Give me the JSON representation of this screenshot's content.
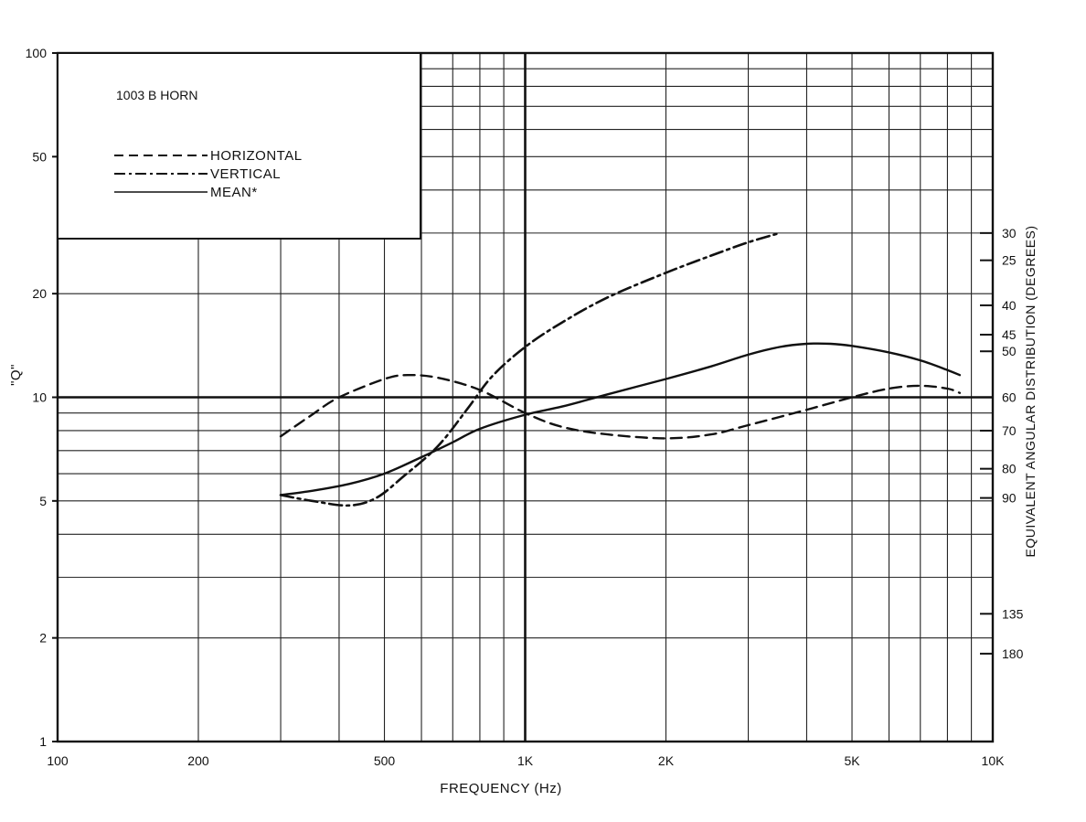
{
  "chart_data": {
    "type": "line",
    "title": "1003 B HORN",
    "xlabel": "FREQUENCY (Hz)",
    "ylabel": "\"Q\"",
    "y2label": "EQUIVALENT ANGULAR DISTRIBUTION (DEGREES)",
    "xscale": "log",
    "yscale": "log",
    "xlim": [
      100,
      10000
    ],
    "ylim": [
      1,
      100
    ],
    "grid": true,
    "legend_position": "top-left",
    "x_ticks": [
      {
        "value": 100,
        "label": "100"
      },
      {
        "value": 200,
        "label": "200"
      },
      {
        "value": 500,
        "label": "500"
      },
      {
        "value": 1000,
        "label": "1K"
      },
      {
        "value": 2000,
        "label": "2K"
      },
      {
        "value": 5000,
        "label": "5K"
      },
      {
        "value": 10000,
        "label": "10K"
      }
    ],
    "y_ticks": [
      {
        "value": 1,
        "label": "1"
      },
      {
        "value": 2,
        "label": "2"
      },
      {
        "value": 5,
        "label": "5"
      },
      {
        "value": 10,
        "label": "10"
      },
      {
        "value": 20,
        "label": "20"
      },
      {
        "value": 50,
        "label": "50"
      },
      {
        "value": 100,
        "label": "100"
      }
    ],
    "y2_ticks": [
      {
        "q": 25.0,
        "label": "25"
      },
      {
        "q": 30.0,
        "label": "30"
      },
      {
        "q": 18.5,
        "label": "40"
      },
      {
        "q": 15.2,
        "label": "45"
      },
      {
        "q": 13.6,
        "label": "50"
      },
      {
        "q": 10.0,
        "label": "60"
      },
      {
        "q": 8.0,
        "label": "70"
      },
      {
        "q": 6.2,
        "label": "80"
      },
      {
        "q": 5.1,
        "label": "90"
      },
      {
        "q": 2.35,
        "label": "135"
      },
      {
        "q": 1.8,
        "label": "180"
      }
    ],
    "series": [
      {
        "name": "HORIZONTAL",
        "style": "dashed",
        "points": [
          [
            300,
            7.7
          ],
          [
            350,
            8.9
          ],
          [
            400,
            10.0
          ],
          [
            500,
            11.3
          ],
          [
            560,
            11.6
          ],
          [
            650,
            11.4
          ],
          [
            800,
            10.5
          ],
          [
            1000,
            9.0
          ],
          [
            1200,
            8.2
          ],
          [
            1500,
            7.8
          ],
          [
            2000,
            7.6
          ],
          [
            2500,
            7.8
          ],
          [
            3000,
            8.3
          ],
          [
            4000,
            9.2
          ],
          [
            5000,
            10.0
          ],
          [
            6000,
            10.6
          ],
          [
            7000,
            10.8
          ],
          [
            8000,
            10.6
          ],
          [
            8500,
            10.3
          ]
        ]
      },
      {
        "name": "VERTICAL",
        "style": "dash-dot",
        "points": [
          [
            300,
            5.2
          ],
          [
            350,
            5.0
          ],
          [
            420,
            4.85
          ],
          [
            480,
            5.1
          ],
          [
            550,
            5.9
          ],
          [
            650,
            7.2
          ],
          [
            750,
            9.2
          ],
          [
            850,
            11.5
          ],
          [
            1000,
            14.0
          ],
          [
            1200,
            16.5
          ],
          [
            1500,
            19.5
          ],
          [
            2000,
            23.0
          ],
          [
            2500,
            25.8
          ],
          [
            3000,
            28.2
          ],
          [
            3500,
            30.0
          ]
        ]
      },
      {
        "name": "MEAN*",
        "style": "solid",
        "points": [
          [
            300,
            5.2
          ],
          [
            350,
            5.35
          ],
          [
            420,
            5.6
          ],
          [
            500,
            6.0
          ],
          [
            600,
            6.7
          ],
          [
            700,
            7.4
          ],
          [
            800,
            8.1
          ],
          [
            1000,
            8.9
          ],
          [
            1200,
            9.4
          ],
          [
            1500,
            10.2
          ],
          [
            2000,
            11.3
          ],
          [
            2500,
            12.3
          ],
          [
            3000,
            13.3
          ],
          [
            3500,
            14.0
          ],
          [
            4000,
            14.3
          ],
          [
            4500,
            14.3
          ],
          [
            5000,
            14.1
          ],
          [
            6000,
            13.5
          ],
          [
            7000,
            12.8
          ],
          [
            8000,
            12.0
          ],
          [
            8500,
            11.6
          ]
        ]
      }
    ]
  }
}
